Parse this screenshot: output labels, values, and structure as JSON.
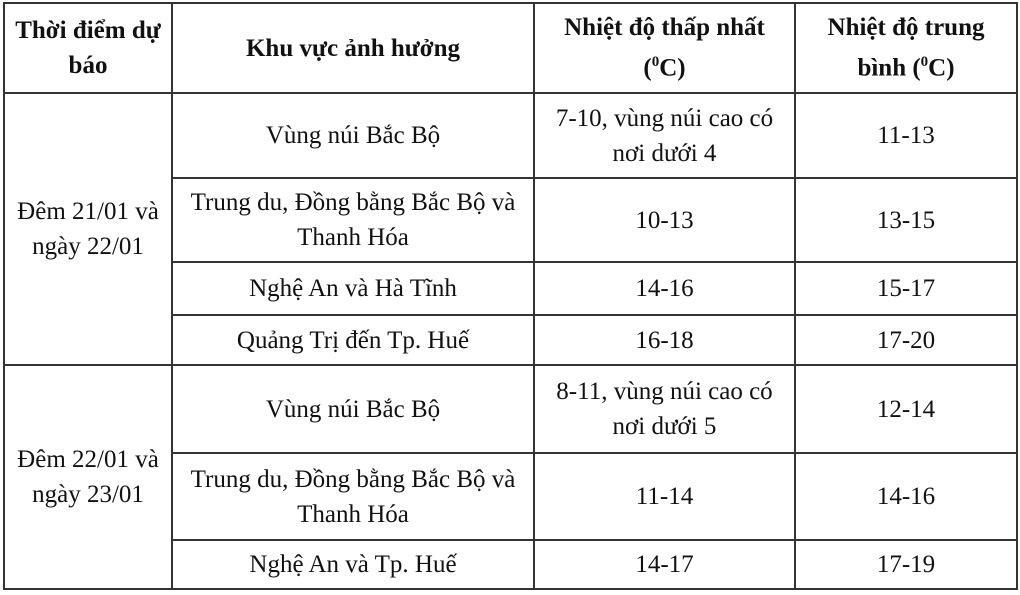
{
  "header": {
    "time": "Thời điểm dự báo",
    "area": "Khu vực ảnh hưởng",
    "min_temp": "Nhiệt độ thấp nhất (",
    "avg_temp": "Nhiệt độ trung bình (",
    "unit_sup": "0",
    "unit": "C)"
  },
  "groups": [
    {
      "time": "Đêm 21/01 và ngày 22/01",
      "rows": [
        {
          "area": "Vùng núi Bắc Bộ",
          "min": "7-10, vùng núi cao có nơi dưới 4",
          "avg": "11-13"
        },
        {
          "area": "Trung du, Đồng bằng Bắc Bộ và Thanh Hóa",
          "min": "10-13",
          "avg": "13-15"
        },
        {
          "area": "Nghệ An và Hà Tĩnh",
          "min": "14-16",
          "avg": "15-17"
        },
        {
          "area": "Quảng Trị đến Tp. Huế",
          "min": "16-18",
          "avg": "17-20"
        }
      ]
    },
    {
      "time": "Đêm 22/01 và ngày 23/01",
      "rows": [
        {
          "area": "Vùng núi Bắc Bộ",
          "min": "8-11, vùng núi cao có nơi dưới 5",
          "avg": "12-14"
        },
        {
          "area": "Trung du, Đồng bằng Bắc Bộ và Thanh Hóa",
          "min": "11-14",
          "avg": "14-16"
        },
        {
          "area": "Nghệ An và Tp. Huế",
          "min": "14-17",
          "avg": "17-19"
        }
      ]
    }
  ]
}
